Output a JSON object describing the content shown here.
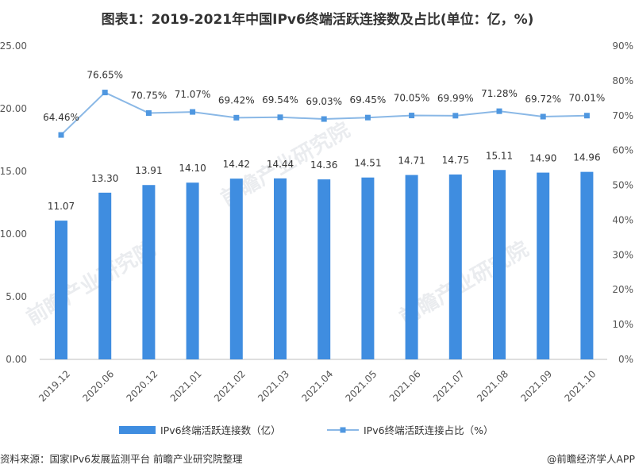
{
  "chart_data": {
    "type": "bar",
    "title": "图表1：2019-2021年中国IPv6终端活跃连接数及占比(单位：亿，%)",
    "categories": [
      "2019.12",
      "2020.06",
      "2020.12",
      "2021.01",
      "2021.02",
      "2021.03",
      "2021.04",
      "2021.05",
      "2021.06",
      "2021.07",
      "2021.08",
      "2021.09",
      "2021.10"
    ],
    "series": [
      {
        "name": "IPv6终端活跃连接数（亿）",
        "type": "bar",
        "axis": "left",
        "values": [
          11.07,
          13.3,
          13.91,
          14.1,
          14.42,
          14.44,
          14.36,
          14.51,
          14.71,
          14.75,
          15.11,
          14.9,
          14.96
        ],
        "labels": [
          "11.07",
          "13.30",
          "13.91",
          "14.10",
          "14.42",
          "14.44",
          "14.36",
          "14.51",
          "14.71",
          "14.75",
          "15.11",
          "14.90",
          "14.96"
        ]
      },
      {
        "name": "IPv6终端活跃连接占比（%）",
        "type": "line",
        "axis": "right",
        "values": [
          64.46,
          76.65,
          70.75,
          71.07,
          69.42,
          69.54,
          69.03,
          69.45,
          70.05,
          69.99,
          71.28,
          69.72,
          70.01
        ],
        "labels": [
          "64.46%",
          "76.65%",
          "70.75%",
          "71.07%",
          "69.42%",
          "69.54%",
          "69.03%",
          "69.45%",
          "70.05%",
          "69.99%",
          "71.28%",
          "69.72%",
          "70.01%"
        ]
      }
    ],
    "ylim_left": [
      0,
      25
    ],
    "ylim_right": [
      0,
      90
    ],
    "yticks_left": [
      "25.00",
      "20.00",
      "15.00",
      "10.00",
      "5.00",
      "0.00"
    ],
    "yticks_right": [
      "90%",
      "80%",
      "70%",
      "60%",
      "50%",
      "40%",
      "30%",
      "20%",
      "10%",
      "0%"
    ],
    "legend_position": "bottom",
    "grid": false,
    "colors": {
      "bar": "#3f8de0",
      "line": "#8ab8e6",
      "marker": "#4f97e0"
    }
  },
  "source": "资料来源：国家IPv6发展监测平台 前瞻产业研究院整理",
  "credit": "@前瞻经济学人APP",
  "watermark": "前瞻产业研究院"
}
